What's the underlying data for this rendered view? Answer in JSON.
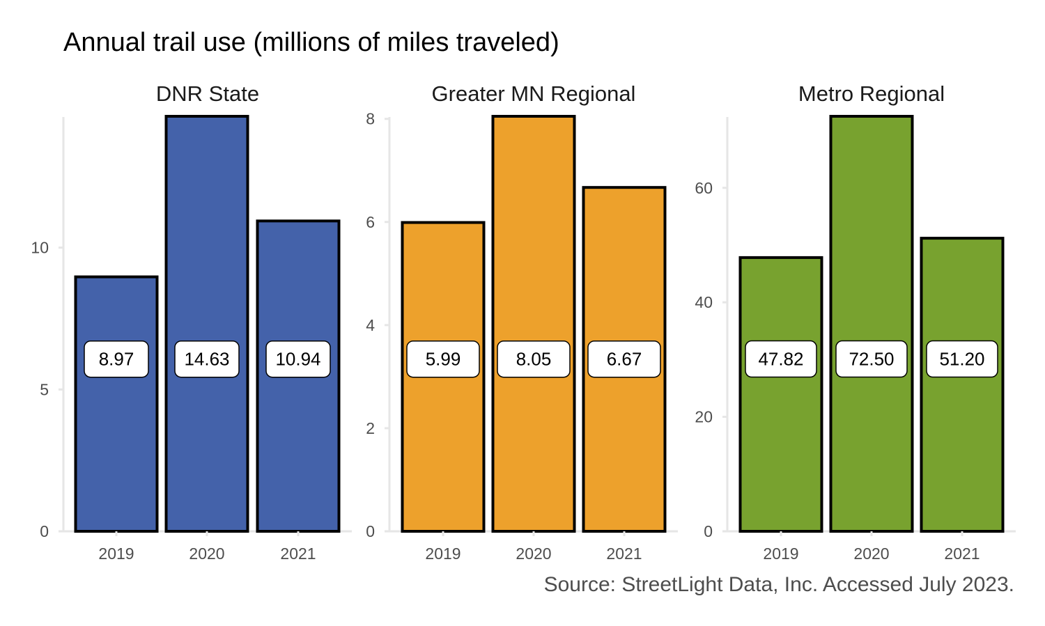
{
  "title": "Annual trail use (millions of miles traveled)",
  "caption": "Source: StreetLight Data, Inc. Accessed July 2023.",
  "chart_data": [
    {
      "type": "bar",
      "panel": "DNR State",
      "color": "#4462AA",
      "categories": [
        "2019",
        "2020",
        "2021"
      ],
      "values": [
        8.97,
        14.63,
        10.94
      ],
      "labels": [
        "8.97",
        "14.63",
        "10.94"
      ],
      "ylim": [
        0,
        14.63
      ],
      "yticks": [
        0,
        5,
        10
      ],
      "label_y": 6.07
    },
    {
      "type": "bar",
      "panel": "Greater MN Regional",
      "color": "#EDA12C",
      "categories": [
        "2019",
        "2020",
        "2021"
      ],
      "values": [
        5.99,
        8.05,
        6.67
      ],
      "labels": [
        "5.99",
        "8.05",
        "6.67"
      ],
      "ylim": [
        0,
        8.05
      ],
      "yticks": [
        0,
        2,
        4,
        6,
        8
      ],
      "label_y": 3.34
    },
    {
      "type": "bar",
      "panel": "Metro Regional",
      "color": "#78A22F",
      "categories": [
        "2019",
        "2020",
        "2021"
      ],
      "values": [
        47.82,
        72.5,
        51.2
      ],
      "labels": [
        "47.82",
        "72.50",
        "51.20"
      ],
      "ylim": [
        0,
        72.5
      ],
      "yticks": [
        0,
        20,
        40,
        60
      ],
      "label_y": 30.1
    }
  ]
}
